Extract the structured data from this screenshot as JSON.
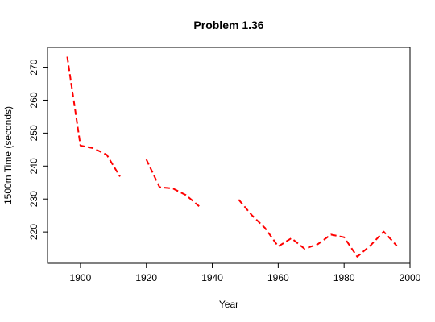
{
  "chart_data": {
    "type": "line",
    "title": "Problem 1.36",
    "xlabel": "Year",
    "ylabel": "1500m Time (seconds)",
    "xlim": [
      1890,
      2000
    ],
    "ylim": [
      210.5,
      276
    ],
    "xticks": [
      1900,
      1920,
      1940,
      1960,
      1980,
      2000
    ],
    "yticks": [
      220,
      230,
      240,
      250,
      260,
      270
    ],
    "grid": false,
    "legend": "none",
    "line_style": "dashed",
    "series": [
      {
        "color": "#ff0000",
        "segments": [
          [
            [
              1896,
              273.2
            ],
            [
              1900,
              246.2
            ],
            [
              1904,
              245.4
            ],
            [
              1908,
              243.4
            ],
            [
              1912,
              236.8
            ]
          ],
          [
            [
              1920,
              242.0
            ],
            [
              1924,
              233.6
            ],
            [
              1928,
              233.2
            ],
            [
              1932,
              231.2
            ],
            [
              1936,
              227.8
            ]
          ],
          [
            [
              1948,
              229.8
            ],
            [
              1952,
              225.1
            ],
            [
              1956,
              221.2
            ],
            [
              1960,
              215.6
            ],
            [
              1964,
              218.1
            ],
            [
              1968,
              214.9
            ],
            [
              1972,
              216.3
            ],
            [
              1976,
              219.2
            ],
            [
              1980,
              218.4
            ],
            [
              1984,
              212.5
            ],
            [
              1988,
              215.9
            ],
            [
              1992,
              220.1
            ],
            [
              1996,
              215.8
            ]
          ]
        ]
      }
    ]
  }
}
